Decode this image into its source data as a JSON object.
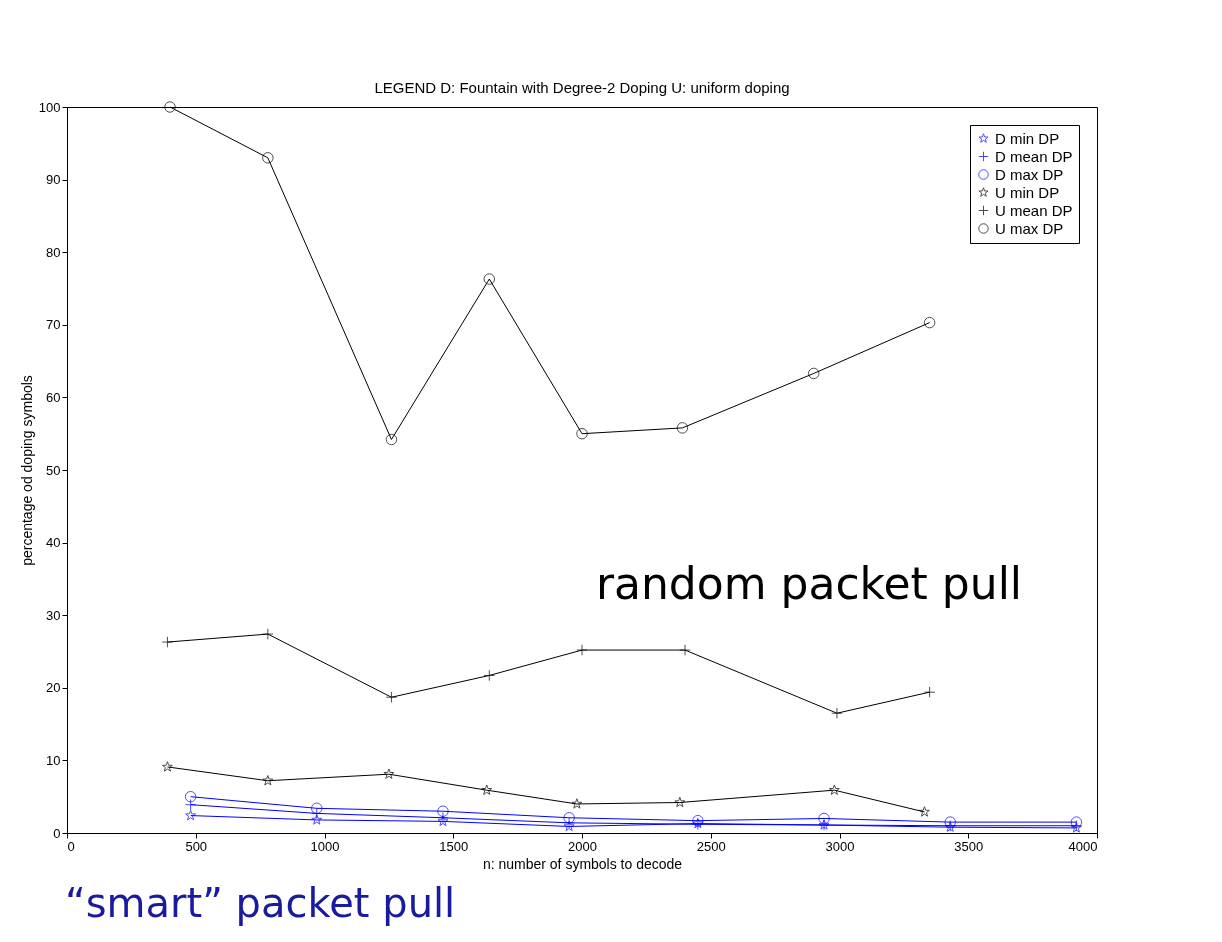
{
  "chart_data": {
    "type": "line",
    "title": "LEGEND  D: Fountain with Degree-2 Doping  U: uniform doping",
    "xlabel": "n: number of symbols to decode",
    "ylabel": "percentage od doping symbols",
    "xlim": [
      0,
      4000
    ],
    "xticks": [
      0,
      500,
      {
        "value": 1000,
        "label": "1000"
      },
      {
        "value": 1500,
        "label": "1500"
      },
      {
        "value": 2000,
        "label": "2000"
      },
      {
        "value": 2500,
        "label": "2500"
      },
      {
        "value": 3000,
        "label": "3000"
      },
      {
        "value": 3500,
        "label": "3500"
      },
      {
        "value": 4000,
        "label": "4000"
      }
    ],
    "ylim": [
      0,
      100
    ],
    "yticks": [
      0,
      10,
      20,
      30,
      40,
      50,
      60,
      70,
      80,
      90,
      100
    ],
    "grid": false,
    "legend": "top right",
    "series": [
      {
        "name": "D min DP",
        "color": "#0000ff",
        "marker": "star",
        "x": [
          480,
          970,
          1460,
          1950,
          2450,
          2940,
          3430,
          3920
        ],
        "values": [
          2.4,
          1.8,
          1.6,
          0.9,
          1.3,
          1.1,
          0.8,
          0.7
        ]
      },
      {
        "name": "D mean DP",
        "color": "#0000ff",
        "marker": "cross",
        "x": [
          480,
          970,
          1460,
          1950,
          2450,
          2940,
          3430,
          3920
        ],
        "values": [
          3.9,
          2.7,
          2.1,
          1.4,
          1.2,
          1.1,
          1.0,
          1.0
        ]
      },
      {
        "name": "D max DP",
        "color": "#0000ff",
        "marker": "circle",
        "x": [
          480,
          970,
          1460,
          1950,
          2450,
          2940,
          3430,
          3920
        ],
        "values": [
          5.0,
          3.4,
          3.0,
          2.1,
          1.7,
          2.0,
          1.5,
          1.5
        ]
      },
      {
        "name": "U min DP",
        "color": "#000000",
        "marker": "star",
        "x": [
          390,
          780,
          1250,
          1630,
          1980,
          2380,
          2980,
          3330
        ],
        "values": [
          9.1,
          7.2,
          8.1,
          5.9,
          4.0,
          4.2,
          5.9,
          2.9
        ]
      },
      {
        "name": "U mean DP",
        "color": "#000000",
        "marker": "cross",
        "x": [
          390,
          780,
          1260,
          1640,
          2000,
          2400,
          2990,
          3350
        ],
        "values": [
          26.3,
          27.4,
          18.7,
          21.7,
          25.2,
          25.2,
          16.5,
          19.4
        ]
      },
      {
        "name": "U max DP",
        "color": "#000000",
        "marker": "circle",
        "x": [
          400,
          780,
          1260,
          1640,
          2000,
          2390,
          2900,
          3350
        ],
        "values": [
          100,
          93,
          54.2,
          76.3,
          55,
          55.8,
          63.3,
          70.3
        ]
      }
    ],
    "annotations": [
      "random packet pull",
      "“smart” packet pull"
    ]
  }
}
